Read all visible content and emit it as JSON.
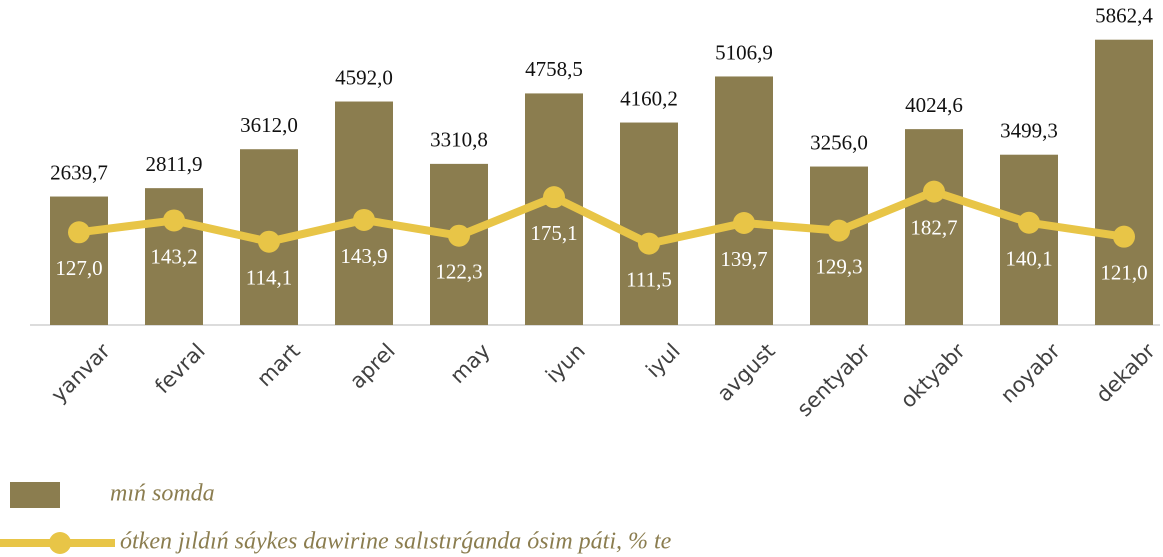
{
  "chart_data": {
    "type": "bar_line",
    "categories": [
      "yanvar",
      "fevral",
      "mart",
      "aprel",
      "may",
      "iyun",
      "iyul",
      "avgust",
      "sentyabr",
      "oktyabr",
      "noyabr",
      "dekabr"
    ],
    "series": [
      {
        "name": "mıń somda",
        "type": "bar",
        "color": "#8b7d4f",
        "values": [
          2639.7,
          2811.9,
          3612.0,
          4592.0,
          3310.8,
          4758.5,
          4160.2,
          5106.9,
          3256.0,
          4024.6,
          3499.3,
          5862.4
        ],
        "value_labels": [
          "2639,7",
          "2811,9",
          "3612,0",
          "4592,0",
          "3310,8",
          "4758,5",
          "4160,2",
          "5106,9",
          "3256,0",
          "4024,6",
          "3499,3",
          "5862,4"
        ]
      },
      {
        "name": "ótken jıldıń sáykes dawirine salıstırǵanda ósim páti, % te",
        "type": "line",
        "axis": "y2",
        "color": "#e8c547",
        "values": [
          127.0,
          143.2,
          114.1,
          143.9,
          122.3,
          175.1,
          111.5,
          139.7,
          129.3,
          182.7,
          140.1,
          121.0
        ],
        "value_labels": [
          "127,0",
          "143,2",
          "114,1",
          "143,9",
          "122,3",
          "175,1",
          "111,5",
          "139,7",
          "129,3",
          "182,7",
          "140,1",
          "121,0"
        ]
      }
    ],
    "ylim": [
      0,
      6000
    ],
    "y2lim": [
      0,
      400
    ],
    "grid": false
  }
}
